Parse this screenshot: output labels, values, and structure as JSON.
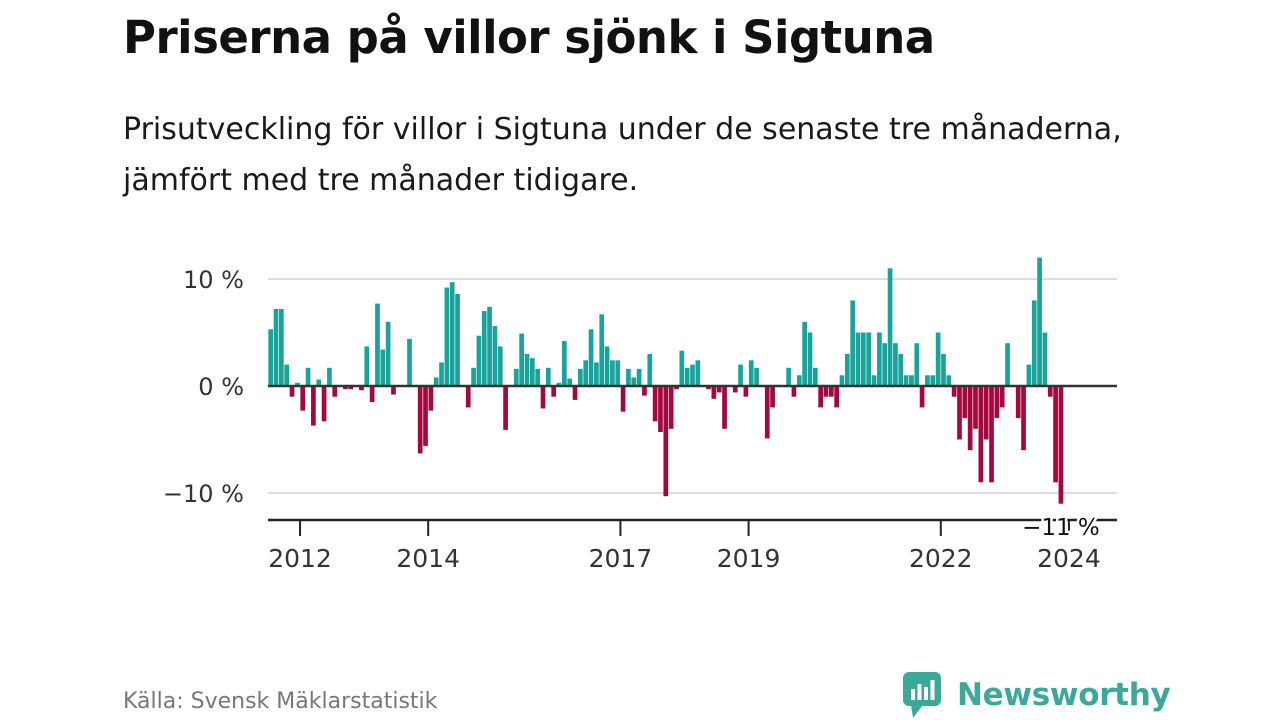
{
  "header": {
    "title": "Priserna på villor sjönk i Sigtuna",
    "subtitle": "Prisutveckling för villor i Sigtuna under de senaste tre månaderna, jämfört med tre månader tidigare."
  },
  "footer": {
    "source": "Källa: Svensk Mäklarstatistik",
    "brand": "Newsworthy"
  },
  "colors": {
    "positive": "#1aa39a",
    "negative": "#a3093f",
    "brand": "#3ba89a",
    "grid": "#dddddd",
    "zero_line": "#333333",
    "axis": "#222222"
  },
  "icons": {
    "brand_logo": "newsworthy-chart-bubble-icon"
  },
  "chart_data": {
    "type": "bar",
    "title": "Priserna på villor sjönk i Sigtuna",
    "subtitle": "Prisutveckling för villor i Sigtuna under de senaste tre månaderna, jämfört med tre månader tidigare.",
    "xlabel": "",
    "ylabel": "",
    "unit": "%",
    "x_start": "2011-07",
    "frequency": "monthly",
    "x_range": [
      2011.5,
      2024.75
    ],
    "ylim": [
      -12.5,
      12.5
    ],
    "y_ticks": [
      10,
      0,
      -10
    ],
    "y_tick_labels": [
      "10 %",
      "0 %",
      "−10 %"
    ],
    "x_ticks": [
      2012,
      2014,
      2017,
      2019,
      2022,
      2024
    ],
    "x_tick_labels": [
      "2012",
      "2014",
      "2017",
      "2019",
      "2022",
      "2024"
    ],
    "grid": true,
    "annotation": {
      "label": "−11 %",
      "value": -11
    },
    "values": [
      5.3,
      7.2,
      7.2,
      2.0,
      -1.0,
      0.3,
      -2.3,
      1.7,
      -3.7,
      0.6,
      -3.3,
      1.7,
      -1.0,
      0.0,
      -0.3,
      -0.3,
      0.0,
      -0.4,
      3.7,
      -1.5,
      7.7,
      3.4,
      6.0,
      -0.8,
      0.0,
      0.0,
      4.4,
      0.0,
      -6.3,
      -5.6,
      -2.3,
      0.8,
      2.2,
      9.2,
      9.7,
      8.6,
      0.0,
      -2.0,
      1.7,
      4.7,
      7.0,
      7.4,
      5.6,
      3.7,
      -4.1,
      0.0,
      1.6,
      4.9,
      3.0,
      2.6,
      1.6,
      -2.1,
      1.7,
      -1.0,
      0.3,
      4.2,
      0.7,
      -1.3,
      1.6,
      2.4,
      5.3,
      2.2,
      6.7,
      3.7,
      2.4,
      2.4,
      -2.4,
      1.6,
      0.8,
      1.6,
      -0.9,
      3.0,
      -3.3,
      -4.3,
      -10.3,
      -4.0,
      -0.3,
      3.3,
      1.7,
      2.0,
      2.4,
      0.0,
      -0.3,
      -1.2,
      -0.6,
      -4.0,
      0.0,
      -0.6,
      2.0,
      -1.0,
      2.4,
      1.7,
      0.0,
      -4.9,
      -2.0,
      0.0,
      0.0,
      1.7,
      -1.0,
      1.0,
      6.0,
      5.0,
      1.7,
      -2.0,
      -1.0,
      -1.0,
      -2.0,
      1.0,
      3.0,
      8.0,
      5.0,
      5.0,
      5.0,
      1.0,
      5.0,
      4.0,
      11.0,
      4.0,
      3.0,
      1.0,
      1.0,
      4.0,
      -2.0,
      1.0,
      1.0,
      5.0,
      3.0,
      1.0,
      -1.0,
      -5.0,
      -3.0,
      -6.0,
      -4.0,
      -9.0,
      -5.0,
      -9.0,
      -3.0,
      -2.0,
      4.0,
      0.0,
      -3.0,
      -6.0,
      2.0,
      8.0,
      12.0,
      5.0,
      -1.0,
      -9.0,
      -11.0
    ]
  }
}
